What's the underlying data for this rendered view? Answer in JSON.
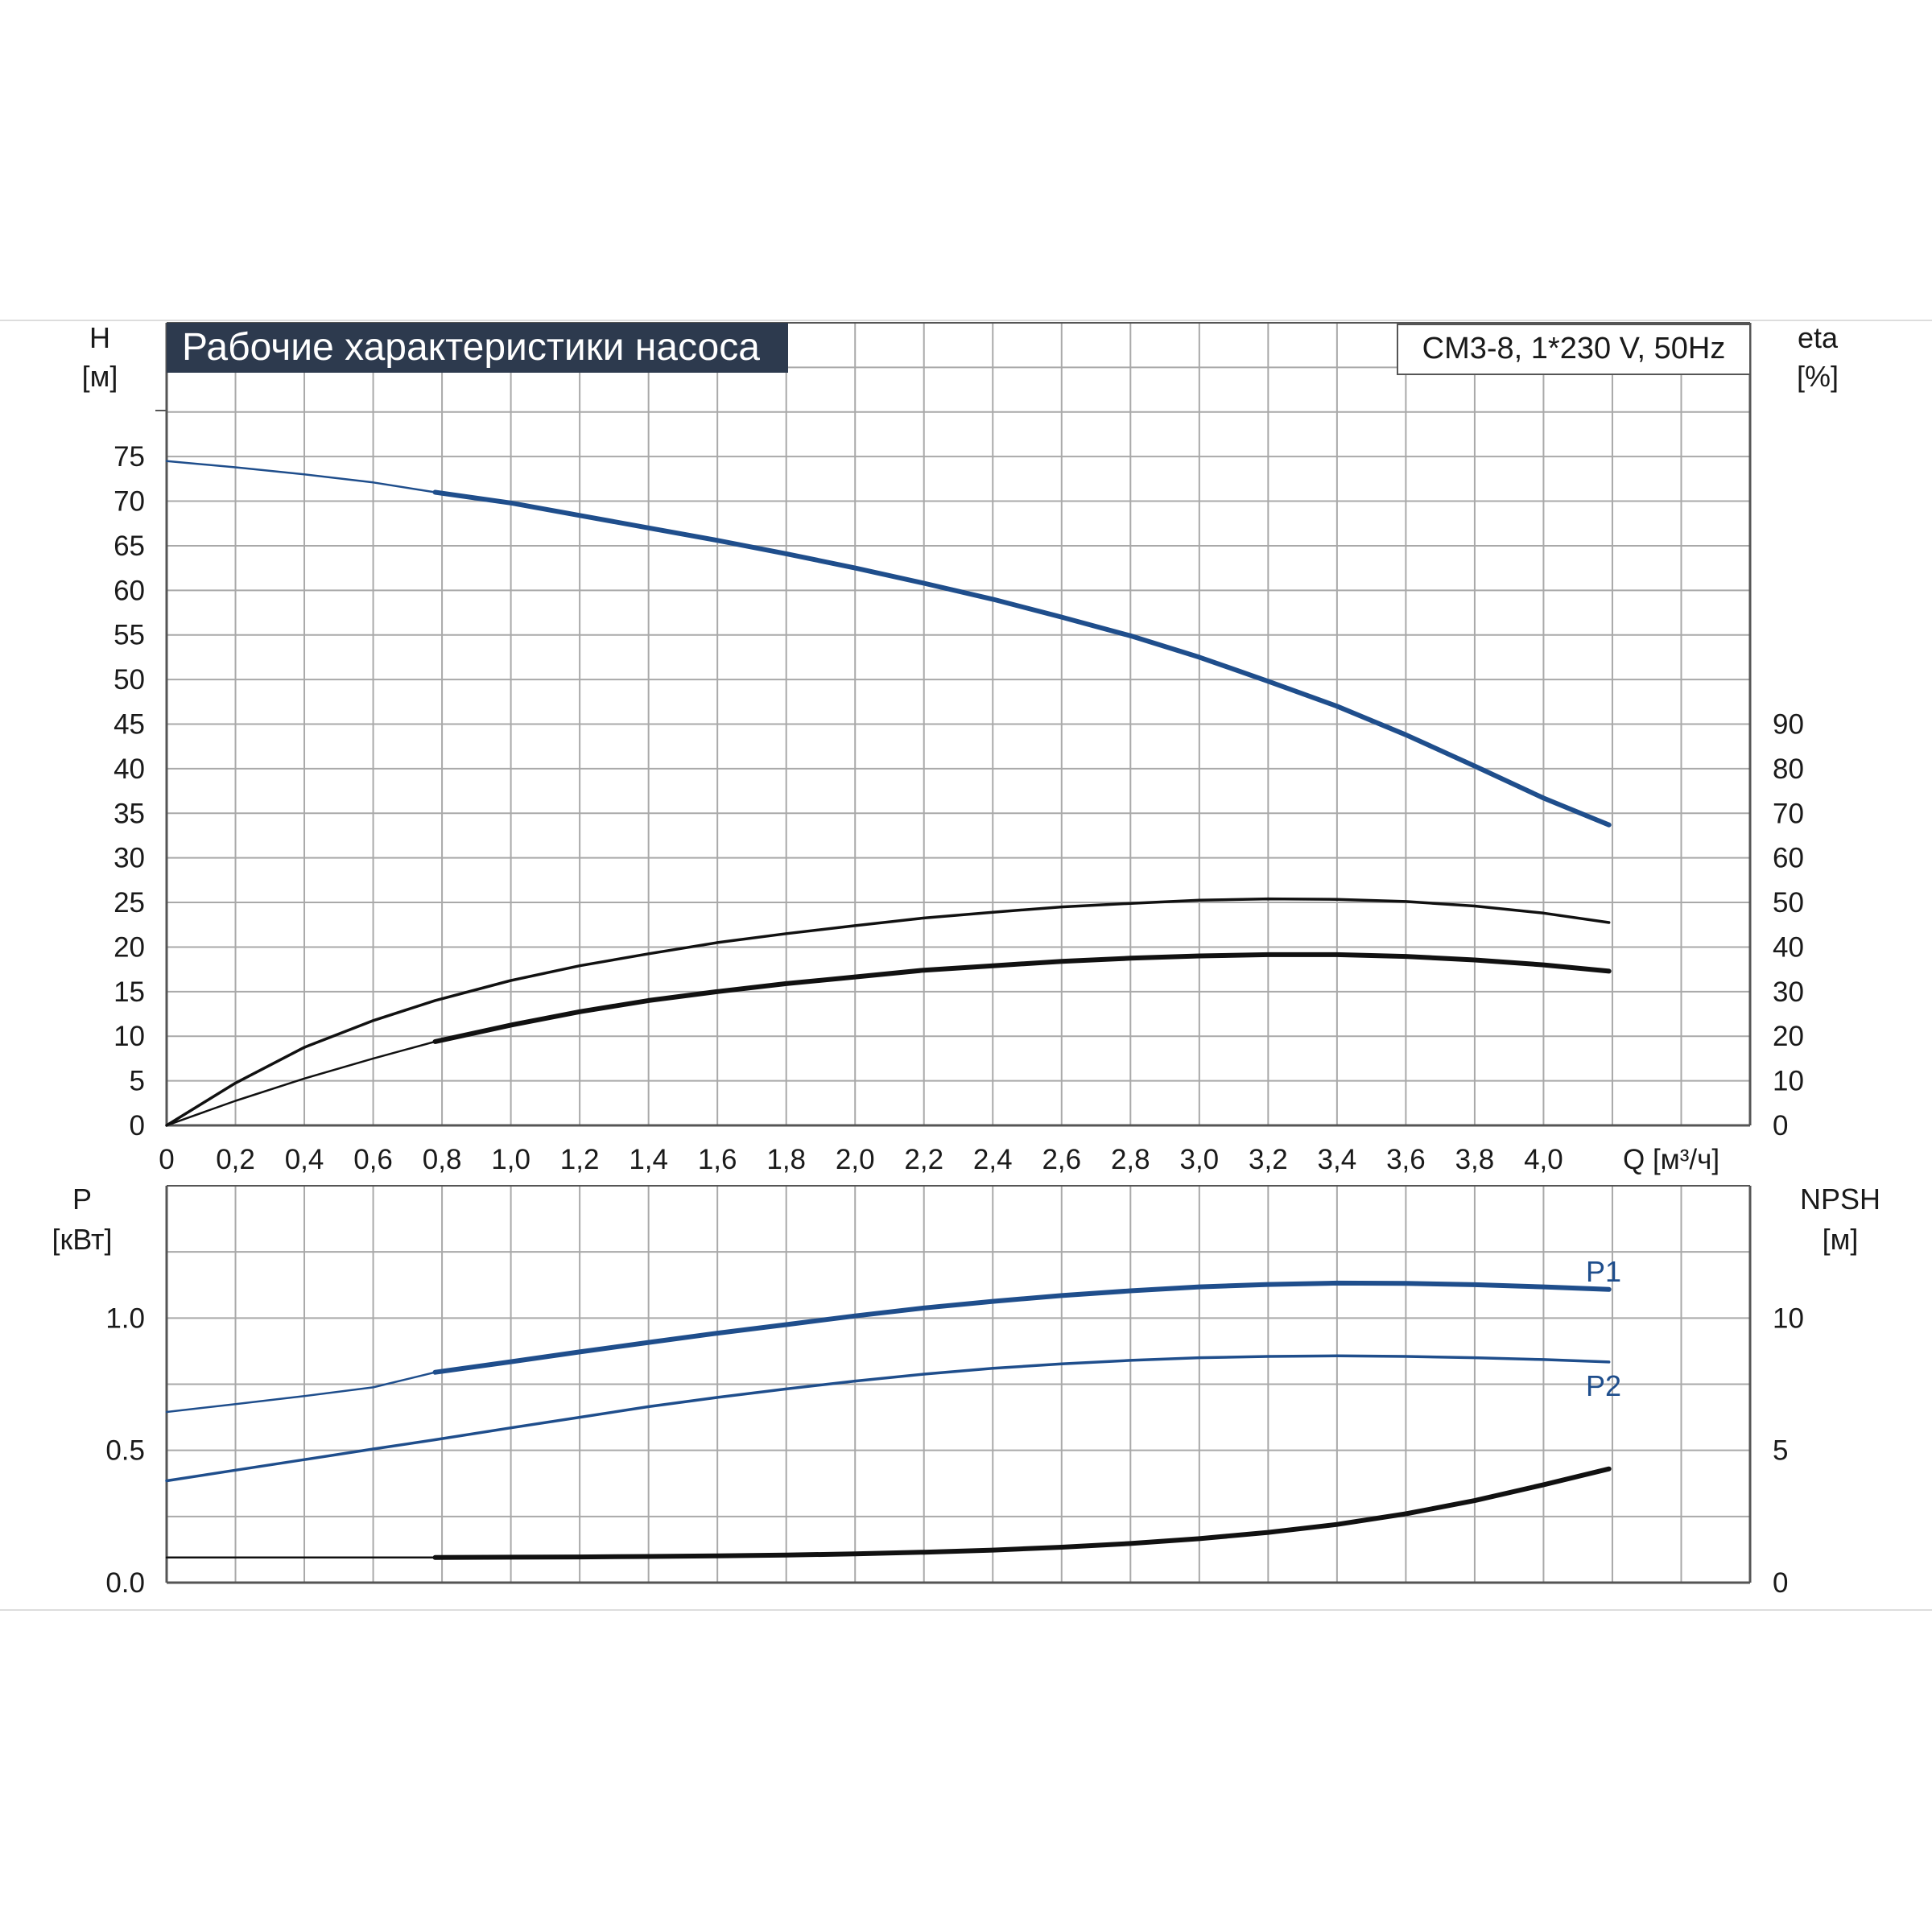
{
  "chart_data": [
    {
      "type": "line",
      "title": "Рабочие характеристики насоса",
      "model_label": "CM3-8, 1*230 V, 50Hz",
      "xlabel": "Q [м³/ч]",
      "ylabel": [
        "H",
        "[м]"
      ],
      "ylabel_right": [
        "eta",
        "[%]"
      ],
      "xlim": [
        0,
        4.6
      ],
      "ylim": [
        0,
        90
      ],
      "ylim_right": [
        0,
        180
      ],
      "grid": true,
      "x_ticks": [
        "0",
        "0,2",
        "0,4",
        "0,6",
        "0,8",
        "1,0",
        "1,2",
        "1,4",
        "1,6",
        "1,8",
        "2,0",
        "2,2",
        "2,4",
        "2,6",
        "2,8",
        "3,0",
        "3,2",
        "3,4",
        "3,6",
        "3,8",
        "4,0"
      ],
      "y_ticks": [
        "0",
        "5",
        "10",
        "15",
        "20",
        "25",
        "30",
        "35",
        "40",
        "45",
        "50",
        "55",
        "60",
        "65",
        "70",
        "75"
      ],
      "y_ticks_right": [
        "0",
        "10",
        "20",
        "30",
        "40",
        "50",
        "60",
        "70",
        "80",
        "90"
      ],
      "series": [
        {
          "axis": "left",
          "color": "#1f4e8c",
          "x": [
            0,
            0.2,
            0.4,
            0.6,
            0.78,
            1.0,
            1.2,
            1.4,
            1.6,
            1.8,
            2.0,
            2.2,
            2.4,
            2.6,
            2.8,
            3.0,
            3.2,
            3.4,
            3.6,
            3.8,
            4.0,
            4.19
          ],
          "y": [
            74.5,
            73.8,
            73.0,
            72.1,
            71.0,
            69.8,
            68.4,
            67.0,
            65.6,
            64.1,
            62.5,
            60.8,
            59.0,
            57.0,
            54.9,
            52.5,
            49.8,
            47.0,
            43.8,
            40.3,
            36.7,
            33.7
          ],
          "operating_from": 0.78
        },
        {
          "axis": "right",
          "color": "#111111",
          "x": [
            0,
            0.2,
            0.4,
            0.6,
            0.78,
            1.0,
            1.2,
            1.4,
            1.6,
            1.8,
            2.0,
            2.2,
            2.4,
            2.6,
            2.8,
            3.0,
            3.2,
            3.4,
            3.6,
            3.8,
            4.0,
            4.19
          ],
          "y": [
            0,
            9.5,
            17.5,
            23.5,
            28,
            32.5,
            35.8,
            38.5,
            41,
            43,
            44.8,
            46.5,
            47.8,
            49,
            49.8,
            50.5,
            50.8,
            50.7,
            50.2,
            49.2,
            47.6,
            45.5
          ]
        },
        {
          "axis": "right",
          "color": "#111111",
          "x": [
            0,
            0.2,
            0.4,
            0.6,
            0.78,
            1.0,
            1.2,
            1.4,
            1.6,
            1.8,
            2.0,
            2.2,
            2.4,
            2.6,
            2.8,
            3.0,
            3.2,
            3.4,
            3.6,
            3.8,
            4.0,
            4.19
          ],
          "y": [
            0,
            5.5,
            10.5,
            15,
            18.8,
            22.5,
            25.5,
            28,
            30,
            31.8,
            33.3,
            34.8,
            35.8,
            36.8,
            37.5,
            38,
            38.3,
            38.3,
            37.9,
            37.1,
            36,
            34.6
          ],
          "operating_from": 0.78
        }
      ]
    },
    {
      "type": "line",
      "ylabel": [
        "P",
        "[кВт]"
      ],
      "ylabel_right": [
        "NPSH",
        "[м]"
      ],
      "xlim": [
        0,
        4.6
      ],
      "ylim": [
        0,
        1.5
      ],
      "ylim_right": [
        0,
        15
      ],
      "grid": true,
      "y_ticks": [
        "0.0",
        "0.5",
        "1.0"
      ],
      "y_ticks_right": [
        "0",
        "5",
        "10"
      ],
      "series": [
        {
          "name": "P1",
          "axis": "left",
          "color": "#1f4e8c",
          "x": [
            0,
            0.2,
            0.4,
            0.6,
            0.78,
            1.0,
            1.2,
            1.4,
            1.6,
            1.8,
            2.0,
            2.2,
            2.4,
            2.6,
            2.8,
            3.0,
            3.2,
            3.4,
            3.6,
            3.8,
            4.0,
            4.19
          ],
          "y": [
            0.645,
            0.675,
            0.705,
            0.738,
            0.795,
            0.835,
            0.872,
            0.908,
            0.943,
            0.975,
            1.008,
            1.038,
            1.063,
            1.085,
            1.103,
            1.118,
            1.127,
            1.132,
            1.131,
            1.126,
            1.118,
            1.108
          ],
          "operating_from": 0.78
        },
        {
          "name": "P2",
          "axis": "left",
          "color": "#1f4e8c",
          "x": [
            0,
            0.2,
            0.4,
            0.6,
            0.78,
            1.0,
            1.2,
            1.4,
            1.6,
            1.8,
            2.0,
            2.2,
            2.4,
            2.6,
            2.8,
            3.0,
            3.2,
            3.4,
            3.6,
            3.8,
            4.0,
            4.19
          ],
          "y": [
            0.385,
            0.425,
            0.465,
            0.505,
            0.54,
            0.585,
            0.625,
            0.665,
            0.7,
            0.732,
            0.762,
            0.788,
            0.81,
            0.827,
            0.84,
            0.85,
            0.855,
            0.857,
            0.855,
            0.85,
            0.843,
            0.834
          ]
        },
        {
          "axis": "right",
          "color": "#111111",
          "x": [
            0,
            0.78,
            1.0,
            1.2,
            1.4,
            1.6,
            1.8,
            2.0,
            2.2,
            2.4,
            2.6,
            2.8,
            3.0,
            3.2,
            3.4,
            3.6,
            3.8,
            4.0,
            4.19
          ],
          "y": [
            0.95,
            0.95,
            0.96,
            0.97,
            0.99,
            1.01,
            1.04,
            1.09,
            1.15,
            1.23,
            1.34,
            1.48,
            1.66,
            1.9,
            2.2,
            2.6,
            3.1,
            3.7,
            4.3
          ],
          "operating_from": 0.78
        }
      ]
    }
  ]
}
